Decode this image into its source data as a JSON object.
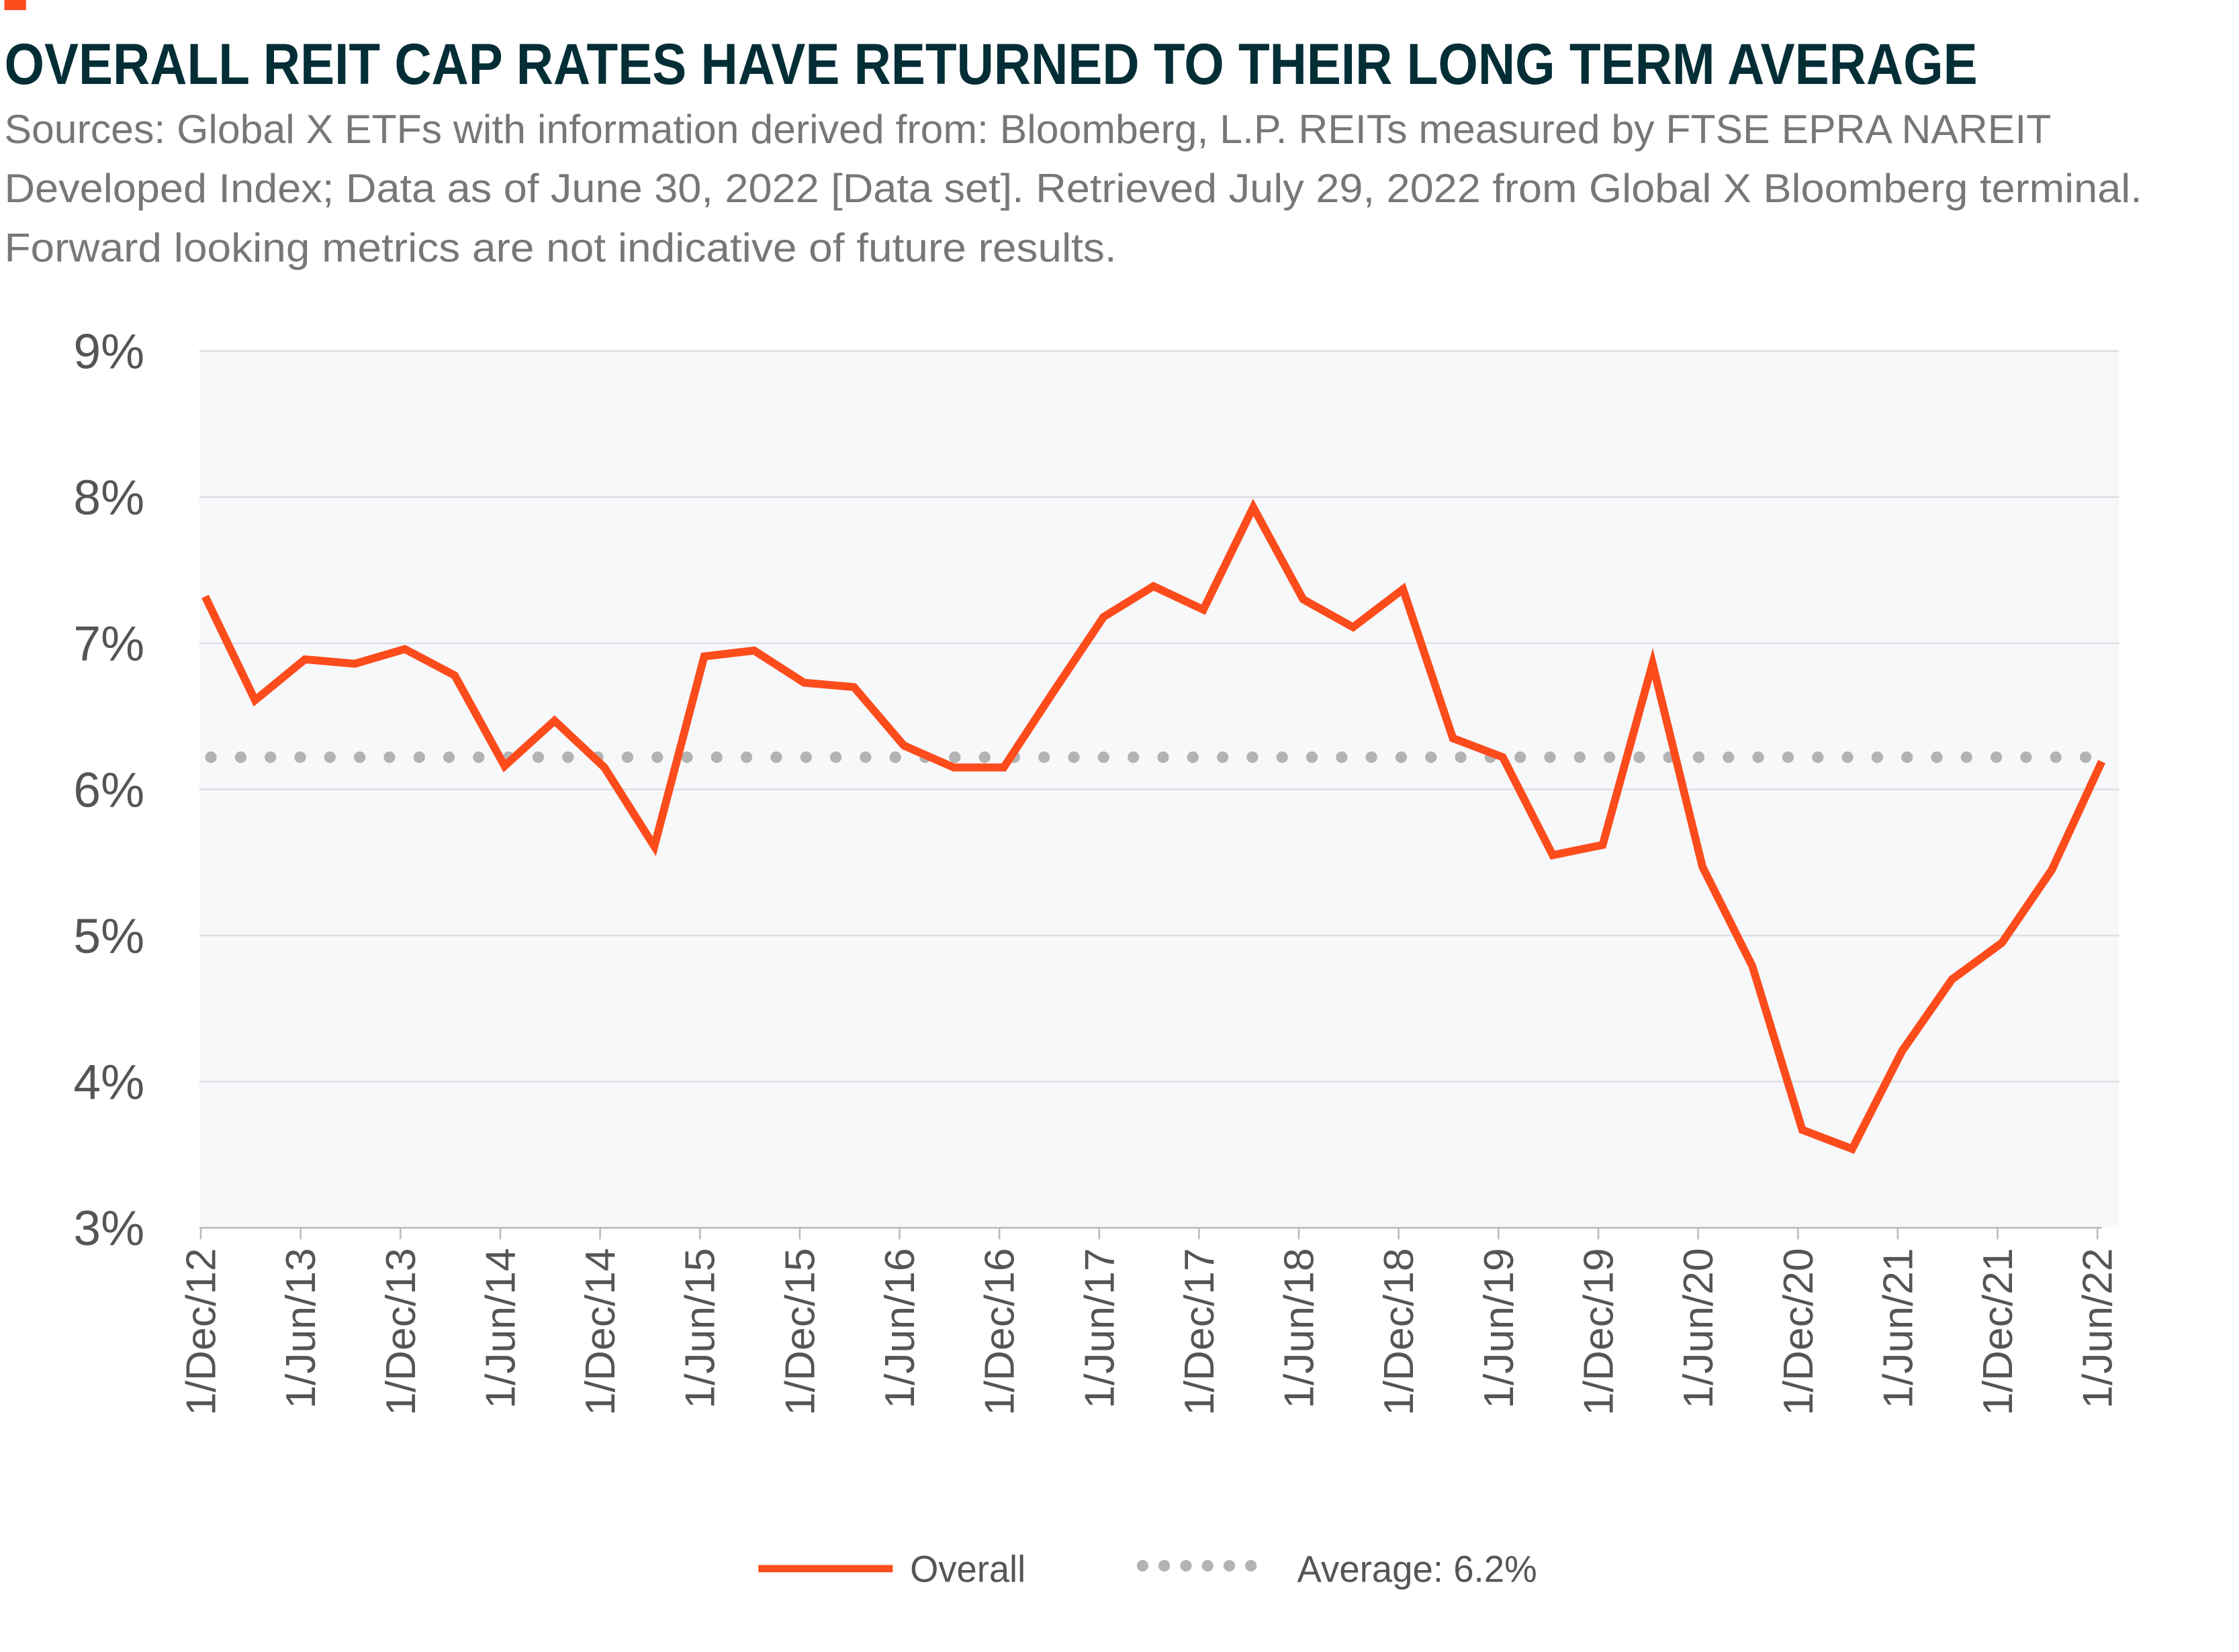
{
  "header": {
    "title": "OVERALL REIT CAP RATES HAVE RETURNED TO THEIR LONG TERM AVERAGE",
    "source_lines": [
      "Sources: Global X ETFs with information derived from: Bloomberg, L.P. REITs measured by FTSE EPRA NAREIT",
      "Developed Index; Data as of June 30, 2022 [Data set]. Retrieved July 29, 2022 from Global X Bloomberg terminal.",
      "Forward looking metrics are not indicative of future results."
    ]
  },
  "colors": {
    "overall": "#fc4c1c",
    "average": "#b3b3b3",
    "title": "#032e36",
    "plot_bg": "#f7f8fa",
    "grid": "#dcdfe3"
  },
  "chart_data": {
    "type": "line",
    "title": "OVERALL REIT CAP RATES HAVE RETURNED TO THEIR LONG TERM AVERAGE",
    "xlabel": "",
    "ylabel": "",
    "ylim": [
      3,
      9
    ],
    "yticks": [
      "3%",
      "4%",
      "5%",
      "6%",
      "7%",
      "8%",
      "9%"
    ],
    "grid": true,
    "legend_placement": "bottom",
    "xticks": [
      "1/Dec/12",
      "1/Jun/13",
      "1/Dec/13",
      "1/Jun/14",
      "1/Dec/14",
      "1/Jun/15",
      "1/Dec/15",
      "1/Jun/16",
      "1/Dec/16",
      "1/Jun/17",
      "1/Dec/17",
      "1/Jun/18",
      "1/Dec/18",
      "1/Jun/19",
      "1/Dec/19",
      "1/Jun/20",
      "1/Dec/20",
      "1/Jun/21",
      "1/Dec/21",
      "1/Jun/22"
    ],
    "x": [
      "Dec-12",
      "Mar-13",
      "Jun-13",
      "Sep-13",
      "Dec-13",
      "Mar-14",
      "Jun-14",
      "Sep-14",
      "Dec-14",
      "Mar-15",
      "Jun-15",
      "Sep-15",
      "Dec-15",
      "Mar-16",
      "Jun-16",
      "Sep-16",
      "Dec-16",
      "Mar-17",
      "Jun-17",
      "Sep-17",
      "Dec-17",
      "Mar-18",
      "Jun-18",
      "Sep-18",
      "Dec-18",
      "Mar-19",
      "Jun-19",
      "Sep-19",
      "Dec-19",
      "Mar-20",
      "Jun-20",
      "Sep-20",
      "Dec-20",
      "Mar-21",
      "Jun-21",
      "Sep-21",
      "Dec-21",
      "Mar-22",
      "Jun-22"
    ],
    "series": [
      {
        "name": "Overall",
        "style": "solid",
        "values": [
          7.32,
          6.61,
          6.89,
          6.86,
          6.96,
          6.78,
          6.16,
          6.47,
          6.15,
          5.61,
          6.91,
          6.95,
          6.73,
          6.7,
          6.3,
          6.15,
          6.15,
          6.67,
          7.18,
          7.39,
          7.23,
          7.93,
          7.3,
          7.11,
          7.37,
          6.35,
          6.22,
          5.55,
          5.62,
          6.86,
          5.47,
          4.79,
          3.67,
          3.54,
          4.21,
          4.7,
          4.95,
          5.45,
          6.19
        ]
      },
      {
        "name": "Average: 6.2%",
        "style": "dotted",
        "value": 6.22
      }
    ]
  }
}
